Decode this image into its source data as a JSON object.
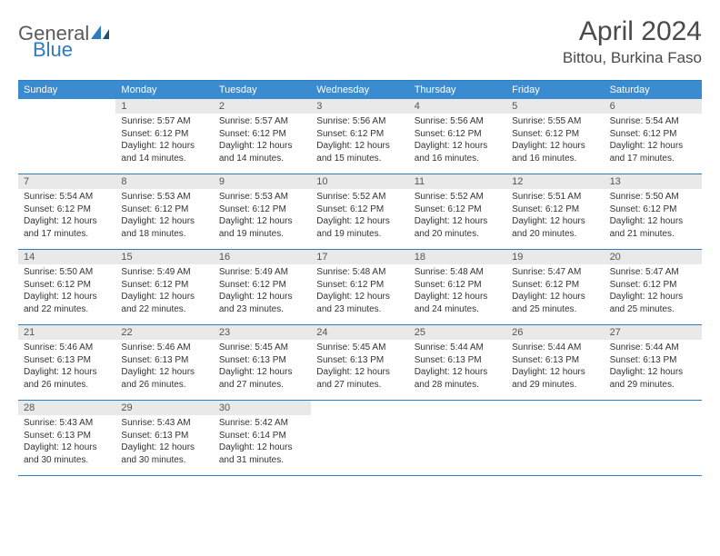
{
  "logo": {
    "part1": "General",
    "part2": "Blue"
  },
  "title": "April 2024",
  "location": "Bittou, Burkina Faso",
  "colors": {
    "header_bg": "#3b8bd0",
    "border": "#2f7bbf",
    "daynum_bg": "#e9e9e9",
    "text": "#333333",
    "logo_gray": "#5a5a5a",
    "logo_blue": "#2f7bbf"
  },
  "weekdays": [
    "Sunday",
    "Monday",
    "Tuesday",
    "Wednesday",
    "Thursday",
    "Friday",
    "Saturday"
  ],
  "weeks": [
    [
      {
        "day": "",
        "lines": []
      },
      {
        "day": "1",
        "lines": [
          "Sunrise: 5:57 AM",
          "Sunset: 6:12 PM",
          "Daylight: 12 hours",
          "and 14 minutes."
        ]
      },
      {
        "day": "2",
        "lines": [
          "Sunrise: 5:57 AM",
          "Sunset: 6:12 PM",
          "Daylight: 12 hours",
          "and 14 minutes."
        ]
      },
      {
        "day": "3",
        "lines": [
          "Sunrise: 5:56 AM",
          "Sunset: 6:12 PM",
          "Daylight: 12 hours",
          "and 15 minutes."
        ]
      },
      {
        "day": "4",
        "lines": [
          "Sunrise: 5:56 AM",
          "Sunset: 6:12 PM",
          "Daylight: 12 hours",
          "and 16 minutes."
        ]
      },
      {
        "day": "5",
        "lines": [
          "Sunrise: 5:55 AM",
          "Sunset: 6:12 PM",
          "Daylight: 12 hours",
          "and 16 minutes."
        ]
      },
      {
        "day": "6",
        "lines": [
          "Sunrise: 5:54 AM",
          "Sunset: 6:12 PM",
          "Daylight: 12 hours",
          "and 17 minutes."
        ]
      }
    ],
    [
      {
        "day": "7",
        "lines": [
          "Sunrise: 5:54 AM",
          "Sunset: 6:12 PM",
          "Daylight: 12 hours",
          "and 17 minutes."
        ]
      },
      {
        "day": "8",
        "lines": [
          "Sunrise: 5:53 AM",
          "Sunset: 6:12 PM",
          "Daylight: 12 hours",
          "and 18 minutes."
        ]
      },
      {
        "day": "9",
        "lines": [
          "Sunrise: 5:53 AM",
          "Sunset: 6:12 PM",
          "Daylight: 12 hours",
          "and 19 minutes."
        ]
      },
      {
        "day": "10",
        "lines": [
          "Sunrise: 5:52 AM",
          "Sunset: 6:12 PM",
          "Daylight: 12 hours",
          "and 19 minutes."
        ]
      },
      {
        "day": "11",
        "lines": [
          "Sunrise: 5:52 AM",
          "Sunset: 6:12 PM",
          "Daylight: 12 hours",
          "and 20 minutes."
        ]
      },
      {
        "day": "12",
        "lines": [
          "Sunrise: 5:51 AM",
          "Sunset: 6:12 PM",
          "Daylight: 12 hours",
          "and 20 minutes."
        ]
      },
      {
        "day": "13",
        "lines": [
          "Sunrise: 5:50 AM",
          "Sunset: 6:12 PM",
          "Daylight: 12 hours",
          "and 21 minutes."
        ]
      }
    ],
    [
      {
        "day": "14",
        "lines": [
          "Sunrise: 5:50 AM",
          "Sunset: 6:12 PM",
          "Daylight: 12 hours",
          "and 22 minutes."
        ]
      },
      {
        "day": "15",
        "lines": [
          "Sunrise: 5:49 AM",
          "Sunset: 6:12 PM",
          "Daylight: 12 hours",
          "and 22 minutes."
        ]
      },
      {
        "day": "16",
        "lines": [
          "Sunrise: 5:49 AM",
          "Sunset: 6:12 PM",
          "Daylight: 12 hours",
          "and 23 minutes."
        ]
      },
      {
        "day": "17",
        "lines": [
          "Sunrise: 5:48 AM",
          "Sunset: 6:12 PM",
          "Daylight: 12 hours",
          "and 23 minutes."
        ]
      },
      {
        "day": "18",
        "lines": [
          "Sunrise: 5:48 AM",
          "Sunset: 6:12 PM",
          "Daylight: 12 hours",
          "and 24 minutes."
        ]
      },
      {
        "day": "19",
        "lines": [
          "Sunrise: 5:47 AM",
          "Sunset: 6:12 PM",
          "Daylight: 12 hours",
          "and 25 minutes."
        ]
      },
      {
        "day": "20",
        "lines": [
          "Sunrise: 5:47 AM",
          "Sunset: 6:12 PM",
          "Daylight: 12 hours",
          "and 25 minutes."
        ]
      }
    ],
    [
      {
        "day": "21",
        "lines": [
          "Sunrise: 5:46 AM",
          "Sunset: 6:13 PM",
          "Daylight: 12 hours",
          "and 26 minutes."
        ]
      },
      {
        "day": "22",
        "lines": [
          "Sunrise: 5:46 AM",
          "Sunset: 6:13 PM",
          "Daylight: 12 hours",
          "and 26 minutes."
        ]
      },
      {
        "day": "23",
        "lines": [
          "Sunrise: 5:45 AM",
          "Sunset: 6:13 PM",
          "Daylight: 12 hours",
          "and 27 minutes."
        ]
      },
      {
        "day": "24",
        "lines": [
          "Sunrise: 5:45 AM",
          "Sunset: 6:13 PM",
          "Daylight: 12 hours",
          "and 27 minutes."
        ]
      },
      {
        "day": "25",
        "lines": [
          "Sunrise: 5:44 AM",
          "Sunset: 6:13 PM",
          "Daylight: 12 hours",
          "and 28 minutes."
        ]
      },
      {
        "day": "26",
        "lines": [
          "Sunrise: 5:44 AM",
          "Sunset: 6:13 PM",
          "Daylight: 12 hours",
          "and 29 minutes."
        ]
      },
      {
        "day": "27",
        "lines": [
          "Sunrise: 5:44 AM",
          "Sunset: 6:13 PM",
          "Daylight: 12 hours",
          "and 29 minutes."
        ]
      }
    ],
    [
      {
        "day": "28",
        "lines": [
          "Sunrise: 5:43 AM",
          "Sunset: 6:13 PM",
          "Daylight: 12 hours",
          "and 30 minutes."
        ]
      },
      {
        "day": "29",
        "lines": [
          "Sunrise: 5:43 AM",
          "Sunset: 6:13 PM",
          "Daylight: 12 hours",
          "and 30 minutes."
        ]
      },
      {
        "day": "30",
        "lines": [
          "Sunrise: 5:42 AM",
          "Sunset: 6:14 PM",
          "Daylight: 12 hours",
          "and 31 minutes."
        ]
      },
      {
        "day": "",
        "lines": []
      },
      {
        "day": "",
        "lines": []
      },
      {
        "day": "",
        "lines": []
      },
      {
        "day": "",
        "lines": []
      }
    ]
  ]
}
